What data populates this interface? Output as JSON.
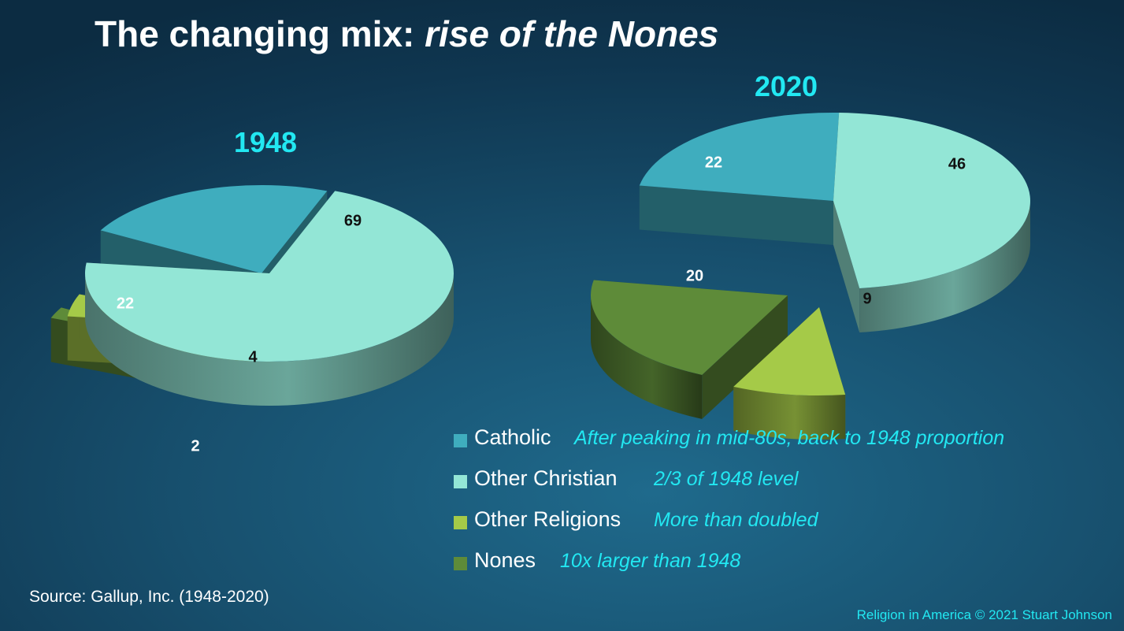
{
  "title": {
    "main": "The changing mix: ",
    "emphasis": "rise of the Nones"
  },
  "chart_data": [
    {
      "type": "pie",
      "title": "1948",
      "categories": [
        "Catholic",
        "Other Christian",
        "Other Religions",
        "Nones"
      ],
      "values": [
        22,
        69,
        4,
        2
      ],
      "labels": [
        "22",
        "69",
        "4",
        "2"
      ]
    },
    {
      "type": "pie",
      "title": "2020",
      "categories": [
        "Catholic",
        "Other Christian",
        "Other Religions",
        "Nones"
      ],
      "values": [
        22,
        46,
        9,
        20
      ],
      "labels": [
        "22",
        "46",
        "9",
        "20"
      ]
    }
  ],
  "legend": [
    {
      "name": "Catholic",
      "note": "After peaking in mid-80s, back to 1948 proportion",
      "color": "#3fadbe"
    },
    {
      "name": "Other Christian",
      "note": "2/3 of 1948 level",
      "color": "#93e6d6"
    },
    {
      "name": "Other Religions",
      "note": "More than doubled",
      "color": "#a5ca48"
    },
    {
      "name": "Nones",
      "note": "10x larger than 1948",
      "color": "#5e8b39"
    }
  ],
  "colors": {
    "catholic": "#3fadbe",
    "other_christian": "#93e6d6",
    "other_religions": "#a5ca48",
    "nones": "#5e8b39",
    "accent": "#22e8f2"
  },
  "source": "Source: Gallup, Inc. (1948-2020)",
  "footer": "Religion in America © 2021 Stuart Johnson"
}
